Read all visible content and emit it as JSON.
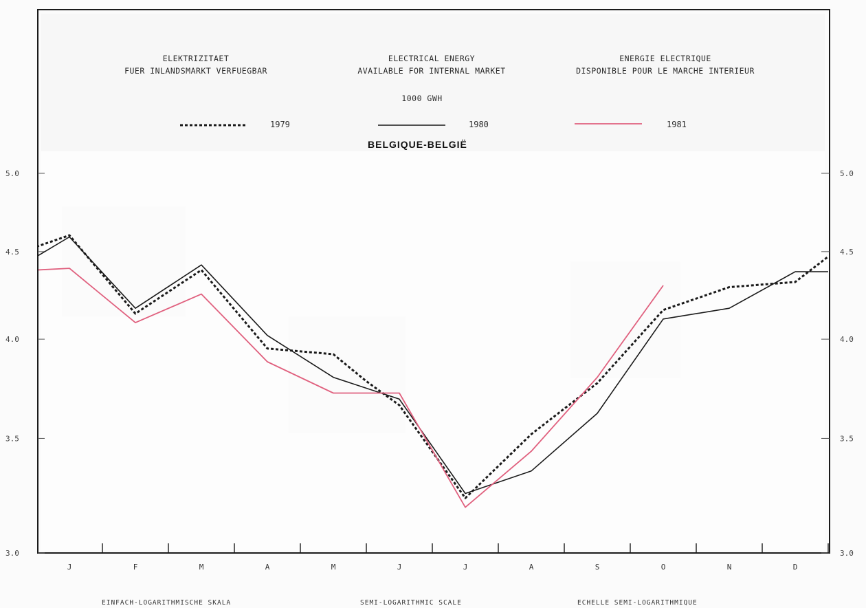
{
  "header": {
    "german": [
      "ELEKTRIZITAET",
      "FUER INLANDSMARKT VERFUEGBAR"
    ],
    "english": [
      "ELECTRICAL ENERGY",
      "AVAILABLE FOR INTERNAL MARKET"
    ],
    "french": [
      "ENERGIE ELECTRIQUE",
      "DISPONIBLE POUR LE MARCHE INTERIEUR"
    ],
    "unit": "1000 GWH",
    "country": "BELGIQUE-BELGIË"
  },
  "footer": {
    "german": "EINFACH-LOGARITHMISCHE SKALA",
    "english": "SEMI-LOGARITHMIC SCALE",
    "french": "ECHELLE SEMI-LOGARITHMIQUE"
  },
  "chart_data": {
    "type": "line",
    "scale": "log",
    "ylim": [
      3.0,
      5.0
    ],
    "yticks": [
      "3.0",
      "3.5",
      "4.0",
      "4.5",
      "5.0"
    ],
    "grid": false,
    "legend_placement": "top",
    "categories": [
      "J",
      "F",
      "M",
      "A",
      "M",
      "J",
      "J",
      "A",
      "S",
      "O",
      "N",
      "D"
    ],
    "series": [
      {
        "name": "1979",
        "style": "dotted",
        "color": "#1a1a1a",
        "x": [
          -0.5,
          0.0,
          1.0,
          2.0,
          3.0,
          4.0,
          4.5,
          5.0,
          6.0,
          7.0,
          8.0,
          9.0,
          10.0,
          11.0,
          11.5
        ],
        "values": [
          4.53,
          4.6,
          4.14,
          4.39,
          3.95,
          3.92,
          3.78,
          3.66,
          3.23,
          3.52,
          3.77,
          4.16,
          4.29,
          4.32,
          4.47
        ]
      },
      {
        "name": "1980",
        "style": "solid",
        "color": "#1a1a1a",
        "x": [
          -0.5,
          0.0,
          1.0,
          2.0,
          3.0,
          4.0,
          5.0,
          6.0,
          7.0,
          8.0,
          9.0,
          10.0,
          11.0,
          11.5
        ],
        "values": [
          4.47,
          4.59,
          4.17,
          4.42,
          4.02,
          3.8,
          3.69,
          3.25,
          3.35,
          3.62,
          4.11,
          4.17,
          4.38,
          4.38
        ]
      },
      {
        "name": "1981",
        "style": "solid",
        "color": "#e0607e",
        "x": [
          -0.5,
          0.0,
          1.0,
          2.0,
          3.0,
          4.0,
          5.0,
          6.0,
          7.0,
          8.0,
          9.0
        ],
        "values": [
          4.39,
          4.4,
          4.09,
          4.25,
          3.88,
          3.72,
          3.72,
          3.19,
          3.44,
          3.8,
          4.3
        ]
      }
    ]
  }
}
